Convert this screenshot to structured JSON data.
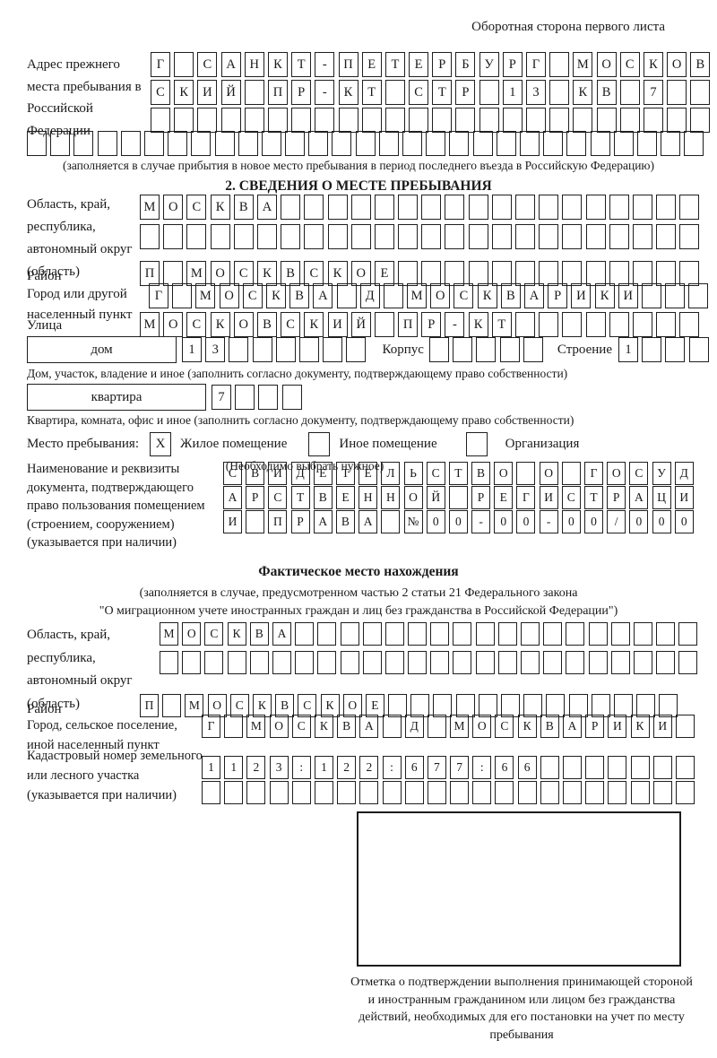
{
  "page": {
    "side_note": "Оборотная сторона первого листа"
  },
  "prev_address": {
    "label": "Адрес прежнего места пребывания в Российской Федерации",
    "row1": {
      "text": "Г САНКТ-ПЕТЕРБУРГ МОСКОВ",
      "len": 24
    },
    "row2": {
      "text": "СКИЙ ПР-КТ СТР 13 КВ 7",
      "len": 24
    },
    "row3": {
      "text": "",
      "len": 24
    },
    "row4": {
      "text": "",
      "len": 29
    },
    "note": "(заполняется в случае прибытия в новое место пребывания в период последнего въезда в Российскую Федерацию)"
  },
  "section2": {
    "title": "2. СВЕДЕНИЯ О МЕСТЕ ПРЕБЫВАНИЯ",
    "oblast": {
      "label": "Область, край, республика, автономный округ (область)",
      "row1": {
        "text": "МОСКВА",
        "len": 24
      },
      "row2": {
        "text": "",
        "len": 24
      }
    },
    "raion": {
      "label": "Район",
      "row": {
        "text": "П МОСКВСКОЕ",
        "len": 24
      }
    },
    "gorod": {
      "label": "Город или другой населенный пункт",
      "row": {
        "text": "Г МОСКВА Д МОСКВАРИКИ",
        "len": 24
      }
    },
    "ulitsa": {
      "label": "Улица",
      "row": {
        "text": "МОСКОВСКИЙ ПР-КТ",
        "len": 24
      }
    },
    "dom": {
      "box_label": "дом",
      "cells": {
        "text": "13",
        "len": 8
      },
      "korpus_label": "Корпус",
      "korpus_cells": {
        "text": "",
        "len": 5
      },
      "stroenie_label": "Строение",
      "stroenie_cells": {
        "text": "1",
        "len": 4
      },
      "note": "Дом, участок, владение и иное (заполнить согласно документу, подтверждающему право собственности)"
    },
    "kvartira": {
      "box_label": "квартира",
      "cells": {
        "text": "7",
        "len": 4
      },
      "note": "Квартира, комната, офис и иное (заполнить согласно документу, подтверждающему право собственности)"
    },
    "mesto": {
      "label": "Место пребывания:",
      "options": [
        {
          "label": "Жилое помещение",
          "mark": "X"
        },
        {
          "label": "Иное помещение",
          "mark": ""
        },
        {
          "label": "Организация",
          "mark": ""
        }
      ],
      "note": "(Необходимо выбрать нужное)"
    },
    "doc": {
      "label": "Наименование и реквизиты документа, подтверждающего право пользования помещением (строением, сооружением) (указывается при наличии)",
      "row1": {
        "text": "СВИДЕТЕЛЬСТВО О ГОСУД",
        "len": 21
      },
      "row2": {
        "text": "АРСТВЕННОЙ РЕГИСТРАЦИ",
        "len": 21
      },
      "row3": {
        "text": "И ПРАВА №00-00-00/000",
        "len": 21
      }
    }
  },
  "section3": {
    "title": "Фактическое место нахождения",
    "subtitle1": "(заполняется в случае, предусмотренном частью 2 статьи 21 Федерального закона",
    "subtitle2": "\"О миграционном учете иностранных граждан и лиц без гражданства в Российской Федерации\")",
    "oblast": {
      "label": "Область, край, республика, автономный округ (область)",
      "row1": {
        "text": "МОСКВА",
        "len": 24
      },
      "row2": {
        "text": "",
        "len": 24
      }
    },
    "raion": {
      "label": "Район",
      "row": {
        "text": "П МОСКВСКОЕ",
        "len": 24
      }
    },
    "gorod": {
      "label": "Город, сельское поселение, иной населенный пункт",
      "row": {
        "text": "Г МОСКВА Д МОСКВАРИКИ",
        "len": 22
      }
    },
    "kadastr": {
      "label": "Кадастровый номер земельного или лесного участка (указывается при наличии)",
      "row1": {
        "text": "1123:122:677:66",
        "len": 22
      },
      "row2": {
        "text": "",
        "len": 22
      }
    }
  },
  "stamp": {
    "note": "Отметка о подтверждении выполнения принимающей стороной и иностранным гражданином или лицом без гражданства действий, необходимых для его постановки на учет по месту пребывания"
  }
}
